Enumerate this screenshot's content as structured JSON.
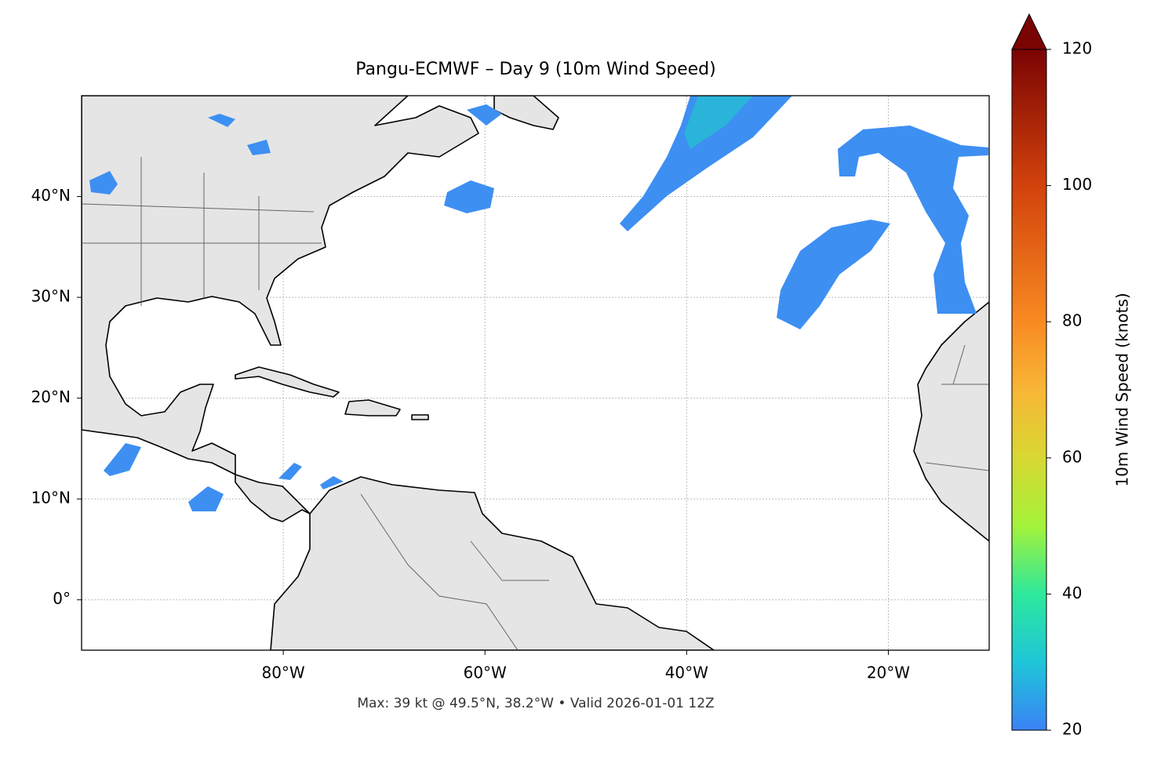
{
  "map": {
    "title": "Pangu-ECMWF – Day 9 (10m Wind Speed)",
    "xlim": [
      -100,
      -10
    ],
    "ylim": [
      -5,
      50
    ],
    "xticks": [
      {
        "value": -80,
        "label": "80°W"
      },
      {
        "value": -60,
        "label": "60°W"
      },
      {
        "value": -40,
        "label": "40°W"
      },
      {
        "value": -20,
        "label": "20°W"
      }
    ],
    "yticks": [
      {
        "value": 0,
        "label": "0°"
      },
      {
        "value": 10,
        "label": "10°N"
      },
      {
        "value": 20,
        "label": "20°N"
      },
      {
        "value": 30,
        "label": "30°N"
      },
      {
        "value": 40,
        "label": "40°N"
      }
    ],
    "grid": true,
    "colorbar": {
      "label": "10m Wind Speed (knots)",
      "lim": [
        20,
        120
      ],
      "ticks": [
        20,
        40,
        60,
        80,
        100,
        120
      ]
    },
    "footer": "Max: 39 kt @ 49.5°N, 38.2°W • Valid 2026-01-01 12Z"
  }
}
